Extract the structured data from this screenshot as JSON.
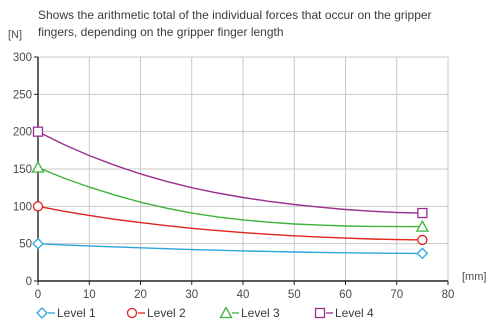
{
  "chart_data": {
    "type": "line",
    "title_lines": [
      "Shows the arithmetic total of the individual forces that occur on the gripper",
      "fingers, depending on the gripper finger length"
    ],
    "ylabel": "[N]",
    "xlabel": "[mm]",
    "xlim": [
      0,
      80
    ],
    "ylim": [
      0,
      300
    ],
    "x_ticks": [
      0,
      10,
      20,
      30,
      40,
      50,
      60,
      70,
      80
    ],
    "y_ticks": [
      0,
      50,
      100,
      150,
      200,
      250,
      300
    ],
    "grid": true,
    "legend_position": "bottom",
    "x": [
      0,
      5,
      10,
      15,
      20,
      25,
      30,
      35,
      40,
      45,
      50,
      55,
      60,
      65,
      70,
      75
    ],
    "series": [
      {
        "name": "Level 1",
        "color": "#2aa6e0",
        "marker": "diamond",
        "values": [
          50,
          48.4,
          47,
          45.7,
          44.4,
          43.2,
          42.1,
          41.2,
          40.3,
          39.6,
          38.9,
          38.3,
          37.8,
          37.4,
          37.1,
          37
        ]
      },
      {
        "name": "Level 2",
        "color": "#e0241b",
        "marker": "circle",
        "values": [
          100,
          93.5,
          87.8,
          82.7,
          78.2,
          74.2,
          70.6,
          67.5,
          64.8,
          62.5,
          60.5,
          58.8,
          57.4,
          56.3,
          55.5,
          55
        ]
      },
      {
        "name": "Level 3",
        "color": "#3cb43c",
        "marker": "triangle",
        "values": [
          152,
          138,
          125.8,
          115,
          105.6,
          97.6,
          91,
          85.8,
          81.8,
          78.7,
          76.4,
          74.8,
          73.7,
          73.1,
          72.9,
          72.8
        ]
      },
      {
        "name": "Level 4",
        "color": "#9c2f8e",
        "marker": "square",
        "values": [
          200,
          183,
          168,
          155,
          143.5,
          133.5,
          125,
          117.8,
          111.8,
          106.8,
          102.5,
          98.8,
          95.8,
          93.5,
          91.8,
          91
        ]
      }
    ]
  }
}
